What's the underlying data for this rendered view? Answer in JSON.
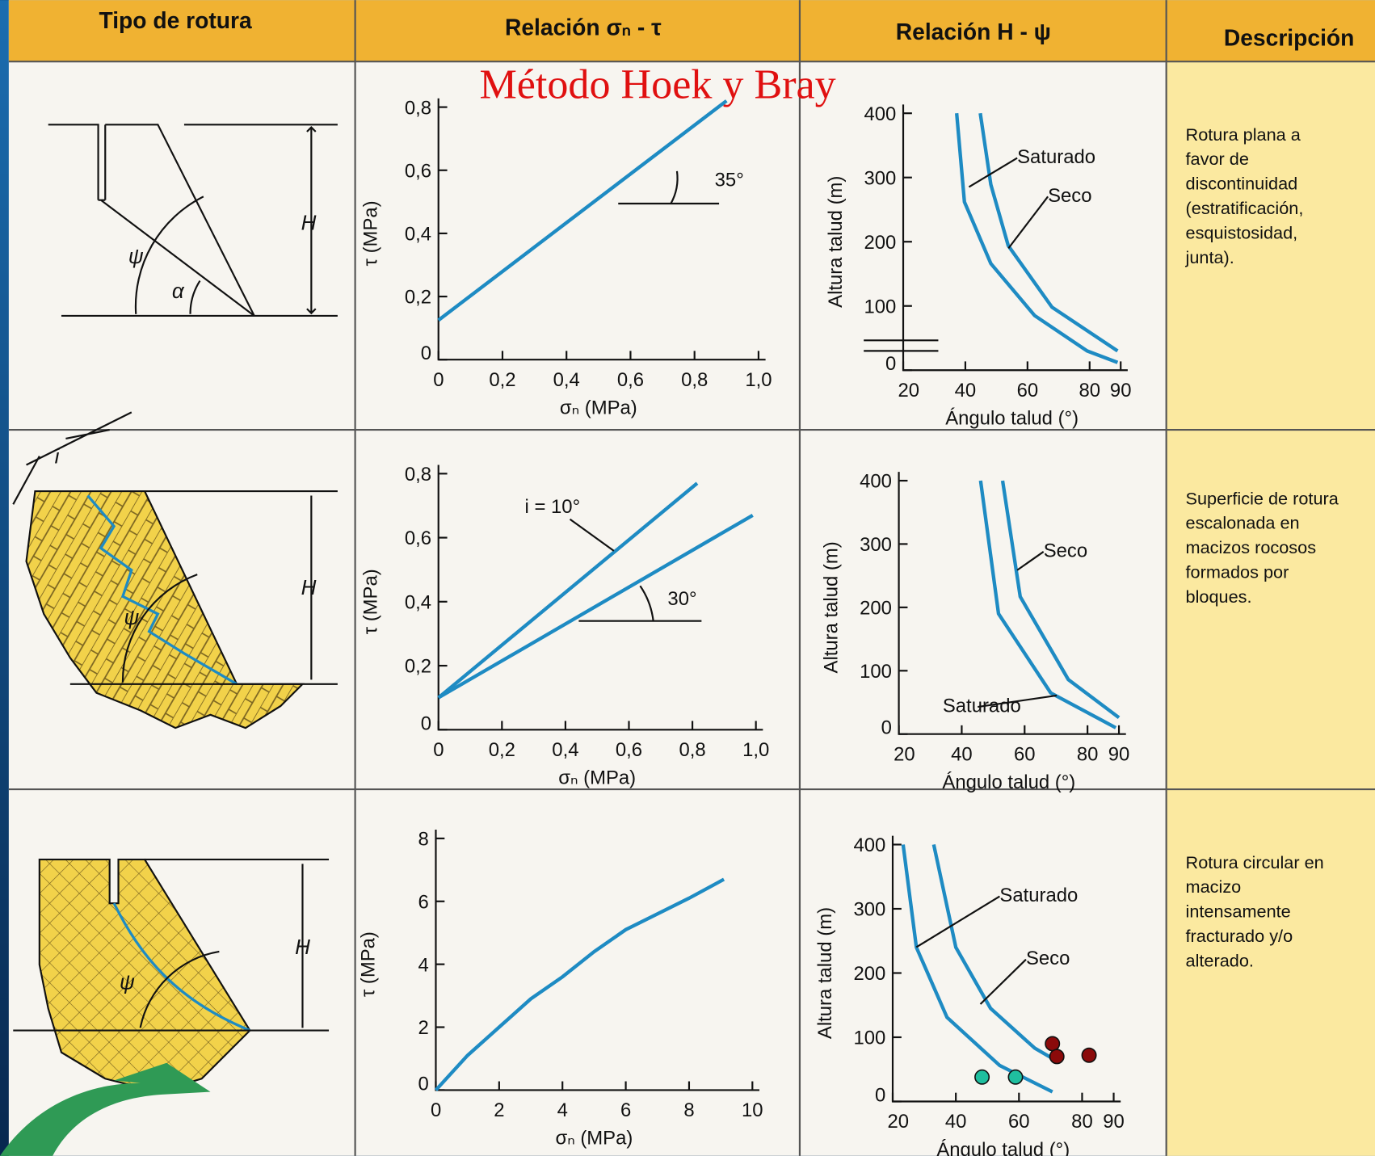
{
  "title": "Método Hoek y Bray",
  "table": {
    "headers": [
      "Tipo de rotura",
      "Relación σₙ - τ",
      "Relación H - ψ",
      "Descripción"
    ],
    "rows": [
      {
        "diagram_labels": [
          "H",
          "ψ",
          "α"
        ],
        "stress": {
          "type": "line",
          "xlabel": "σₙ (MPa)",
          "ylabel": "τ (MPa)",
          "color": "#1e8bc3",
          "xlim": [
            0,
            1
          ],
          "ylim": [
            0,
            0.8
          ],
          "xticks": [
            0,
            {
              "value": 0.2,
              "label": "0,2"
            },
            {
              "value": 0.4,
              "label": "0,4"
            },
            {
              "value": 0.6,
              "label": "0,6"
            },
            {
              "value": 0.8,
              "label": "0,8"
            },
            {
              "value": 1,
              "label": "1,0"
            }
          ],
          "yticks": [
            0,
            {
              "value": 0.2,
              "label": "0,2"
            },
            {
              "value": 0.4,
              "label": "0,4"
            },
            {
              "value": 0.6,
              "label": "0,6"
            },
            {
              "value": 0.8,
              "label": "0,8"
            }
          ],
          "series": [
            {
              "x": [
                0,
                0.9
              ],
              "values": [
                0.125,
                0.82
              ]
            }
          ],
          "annotations": [
            "35°"
          ]
        },
        "height": {
          "type": "line",
          "xlabel": "Ángulo talud (°)",
          "ylabel": "Altura talud (m)",
          "color": "#1e8bc3",
          "xlim": [
            20,
            90
          ],
          "ylim": [
            0,
            400
          ],
          "xticks": [
            20,
            40,
            60,
            80,
            90
          ],
          "yticks": [
            0,
            100,
            200,
            300,
            400
          ],
          "series": [
            {
              "name": "Saturado",
              "x": [
                37.2,
                39.7,
                48.2,
                62.3,
                79.2,
                89
              ],
              "values": [
                400,
                262,
                166,
                85,
                30,
                12
              ]
            },
            {
              "name": "Seco",
              "x": [
                44.8,
                48.2,
                53.8,
                67.9,
                89
              ],
              "values": [
                400,
                289,
                194,
                98,
                30
              ]
            }
          ]
        },
        "description": [
          "Rotura plana a",
          "favor de",
          "discontinuidad",
          "(estratificación,",
          "esquistosidad,",
          "junta)."
        ]
      },
      {
        "diagram_labels": [
          "i",
          "H",
          "ψ"
        ],
        "stress": {
          "type": "line",
          "xlabel": "σₙ (MPa)",
          "ylabel": "τ (MPa)",
          "color": "#1e8bc3",
          "xlim": [
            0,
            1
          ],
          "ylim": [
            0,
            0.8
          ],
          "xticks": [
            0,
            {
              "value": 0.2,
              "label": "0,2"
            },
            {
              "value": 0.4,
              "label": "0,4"
            },
            {
              "value": 0.6,
              "label": "0,6"
            },
            {
              "value": 0.8,
              "label": "0,8"
            },
            {
              "value": 1,
              "label": "1,0"
            }
          ],
          "yticks": [
            0,
            {
              "value": 0.2,
              "label": "0,2"
            },
            {
              "value": 0.4,
              "label": "0,4"
            },
            {
              "value": 0.6,
              "label": "0,6"
            },
            {
              "value": 0.8,
              "label": "0,8"
            }
          ],
          "series": [
            {
              "x": [
                0,
                0.815
              ],
              "values": [
                0.1,
                0.77
              ]
            },
            {
              "x": [
                0,
                0.99
              ],
              "values": [
                0.1,
                0.67
              ]
            }
          ],
          "annotations": [
            "i = 10°",
            "30°"
          ]
        },
        "height": {
          "type": "line",
          "xlabel": "Ángulo talud (°)",
          "ylabel": "Altura talud (m)",
          "color": "#1e8bc3",
          "xlim": [
            20,
            90
          ],
          "ylim": [
            0,
            400
          ],
          "xticks": [
            20,
            40,
            60,
            80,
            90
          ],
          "yticks": [
            0,
            100,
            200,
            300,
            400
          ],
          "series": [
            {
              "name": "Seco",
              "x": [
                53,
                58.6,
                73.9,
                90
              ],
              "values": [
                400,
                217,
                86,
                26
              ]
            },
            {
              "name": "Saturado",
              "x": [
                46,
                51.7,
                68.3,
                89
              ],
              "values": [
                400,
                190,
                65,
                10
              ]
            }
          ]
        },
        "description": [
          "Superficie de rotura",
          "escalonada en",
          "macizos rocosos",
          "formados por",
          "bloques."
        ]
      },
      {
        "diagram_labels": [
          "H",
          "ψ"
        ],
        "stress": {
          "type": "line",
          "xlabel": "σₙ (MPa)",
          "ylabel": "τ (MPa)",
          "color": "#1e8bc3",
          "xlim": [
            0,
            10
          ],
          "ylim": [
            0,
            8
          ],
          "xticks": [
            0,
            2,
            4,
            6,
            8,
            10
          ],
          "yticks": [
            0,
            2,
            4,
            6,
            8
          ],
          "series": [
            {
              "x": [
                0,
                1,
                2,
                3,
                4,
                5,
                6,
                7,
                8,
                9.1
              ],
              "values": [
                0,
                1.1,
                2,
                2.9,
                3.6,
                4.4,
                5.1,
                5.6,
                6.1,
                6.7
              ]
            }
          ],
          "annotations": []
        },
        "height": {
          "type": "line",
          "xlabel": "Ángulo talud (°)",
          "ylabel": "Altura talud (m)",
          "color": "#1e8bc3",
          "xlim": [
            20,
            90
          ],
          "ylim": [
            0,
            400
          ],
          "xticks": [
            20,
            40,
            60,
            80,
            90
          ],
          "yticks": [
            0,
            100,
            200,
            300,
            400
          ],
          "series": [
            {
              "name": "Saturado",
              "x": [
                23.3,
                27.5,
                37.2,
                53.9,
                70.6
              ],
              "values": [
                400,
                240,
                131,
                56,
                15
              ]
            },
            {
              "name": "Seco",
              "x": [
                33,
                40,
                51,
                65,
                72
              ],
              "values": [
                400,
                240,
                145,
                83,
                63
              ]
            }
          ],
          "points": [
            {
              "color": "#8b0a0a",
              "x": [
                70.6,
                72,
                82.2
              ],
              "values": [
                90,
                70,
                72
              ]
            },
            {
              "color": "#1fbf9f",
              "x": [
                48.3,
                58.9
              ],
              "values": [
                38,
                38
              ]
            }
          ]
        },
        "description": [
          "Rotura circular en",
          "macizo",
          "intensamente",
          "fracturado y/o",
          "alterado."
        ]
      }
    ]
  }
}
